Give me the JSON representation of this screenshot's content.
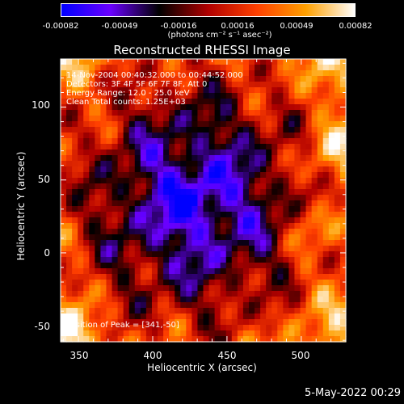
{
  "colorbar": {
    "ticks": [
      "-0.00082",
      "-0.00049",
      "-0.00016",
      "0.00016",
      "0.00049",
      "0.00082"
    ],
    "units": "(photons cm⁻² s⁻¹ asec⁻²)"
  },
  "title": "Reconstructed RHESSI Image",
  "info": {
    "time_range": "14-Nov-2004 00:40:32.000 to 00:44:52.000",
    "detectors": "Detectors: 3F 4F 5F 6F 7F 8F, Att 0",
    "energy": "Energy Range: 12.0 - 25.0 keV",
    "clean": "Clean     Total counts: 1.25E+03"
  },
  "peak_label": "Position of Peak = [341,-50]",
  "timestamp": "5-May-2022 00:29",
  "chart_data": {
    "type": "heatmap",
    "title": "Reconstructed RHESSI Image",
    "xlabel": "Heliocentric X (arcsec)",
    "ylabel": "Heliocentric Y (arcsec)",
    "xlim": [
      338,
      530
    ],
    "ylim": [
      -61,
      133
    ],
    "xticks": [
      "350",
      "400",
      "450",
      "500"
    ],
    "yticks": [
      "100",
      "50",
      "0",
      "-50"
    ],
    "xtick_values": [
      350,
      400,
      450,
      500
    ],
    "ytick_values": [
      100,
      50,
      0,
      -50
    ],
    "colorscale": {
      "min": -0.00082,
      "max": 0.00082,
      "stops": [
        "#0000ff",
        "#6a00ff",
        "#000000",
        "#b00000",
        "#ff4000",
        "#ffa000",
        "#ffffff"
      ]
    },
    "peak": [
      341,
      -50
    ],
    "grid": false
  }
}
